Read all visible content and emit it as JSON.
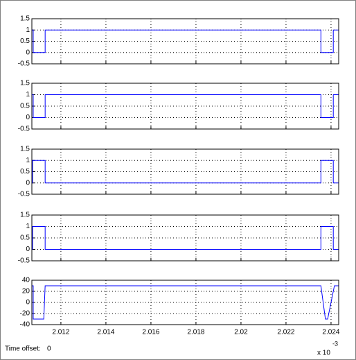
{
  "chart_data": [
    {
      "type": "line",
      "x": [
        2.01071,
        2.01077,
        2.01077,
        2.0113,
        2.0113,
        2.02355,
        2.02355,
        2.0241,
        2.0241,
        2.02434
      ],
      "series": [
        {
          "color": "#0000ff",
          "values": [
            1,
            1,
            0,
            0,
            1,
            1,
            0,
            0,
            1,
            1
          ]
        }
      ],
      "xlim": [
        2.01071,
        2.02434
      ],
      "xticks": [
        2.012,
        2.014,
        2.016,
        2.018,
        2.02,
        2.022,
        2.024
      ],
      "ylim": [
        -0.5,
        1.5
      ],
      "yticks": [
        1.5,
        1,
        0.5,
        0,
        -0.5
      ],
      "grid": true
    },
    {
      "type": "line",
      "x": [
        2.01071,
        2.01077,
        2.01077,
        2.0113,
        2.0113,
        2.02355,
        2.02355,
        2.0241,
        2.0241,
        2.02434
      ],
      "series": [
        {
          "color": "#0000ff",
          "values": [
            1,
            1,
            0,
            0,
            1,
            1,
            0,
            0,
            1,
            1
          ]
        }
      ],
      "xlim": [
        2.01071,
        2.02434
      ],
      "xticks": [
        2.012,
        2.014,
        2.016,
        2.018,
        2.02,
        2.022,
        2.024
      ],
      "ylim": [
        -0.5,
        1.5
      ],
      "yticks": [
        1.5,
        1,
        0.5,
        0,
        -0.5
      ],
      "grid": true
    },
    {
      "type": "line",
      "x": [
        2.01071,
        2.01074,
        2.01074,
        2.0113,
        2.0113,
        2.02355,
        2.02355,
        2.0241,
        2.0241,
        2.02434
      ],
      "series": [
        {
          "color": "#0000ff",
          "values": [
            0,
            0,
            1,
            1,
            0,
            0,
            1,
            1,
            0,
            0
          ]
        }
      ],
      "xlim": [
        2.01071,
        2.02434
      ],
      "xticks": [
        2.012,
        2.014,
        2.016,
        2.018,
        2.02,
        2.022,
        2.024
      ],
      "ylim": [
        -0.5,
        1.5
      ],
      "yticks": [
        1.5,
        1,
        0.5,
        0,
        -0.5
      ],
      "grid": true
    },
    {
      "type": "line",
      "x": [
        2.01071,
        2.01074,
        2.01074,
        2.0113,
        2.0113,
        2.02355,
        2.02355,
        2.0241,
        2.0241,
        2.02434
      ],
      "series": [
        {
          "color": "#0000ff",
          "values": [
            0,
            0,
            1,
            1,
            0,
            0,
            1,
            1,
            0,
            0
          ]
        }
      ],
      "xlim": [
        2.01071,
        2.02434
      ],
      "xticks": [
        2.012,
        2.014,
        2.016,
        2.018,
        2.02,
        2.022,
        2.024
      ],
      "ylim": [
        -0.5,
        1.5
      ],
      "yticks": [
        1.5,
        1,
        0.5,
        0,
        -0.5
      ],
      "grid": true
    },
    {
      "type": "line",
      "x": [
        2.01071,
        2.01077,
        2.01077,
        2.01124,
        2.0113,
        2.02355,
        2.02375,
        2.02385,
        2.02415,
        2.02434
      ],
      "series": [
        {
          "color": "#0000ff",
          "values": [
            30,
            30,
            -30,
            -30,
            30,
            30,
            -30,
            -30,
            30,
            30
          ]
        }
      ],
      "xlim": [
        2.01071,
        2.02434
      ],
      "xticks": [
        2.012,
        2.014,
        2.016,
        2.018,
        2.02,
        2.022,
        2.024
      ],
      "ylim": [
        -40,
        40
      ],
      "yticks": [
        40,
        20,
        0,
        -20,
        -40
      ],
      "grid": true,
      "show_xtick_labels": true
    }
  ],
  "footer": {
    "time_offset_label": "Time offset:",
    "time_offset": "0",
    "x_multiplier": "x 10",
    "x_exponent": "-3"
  }
}
